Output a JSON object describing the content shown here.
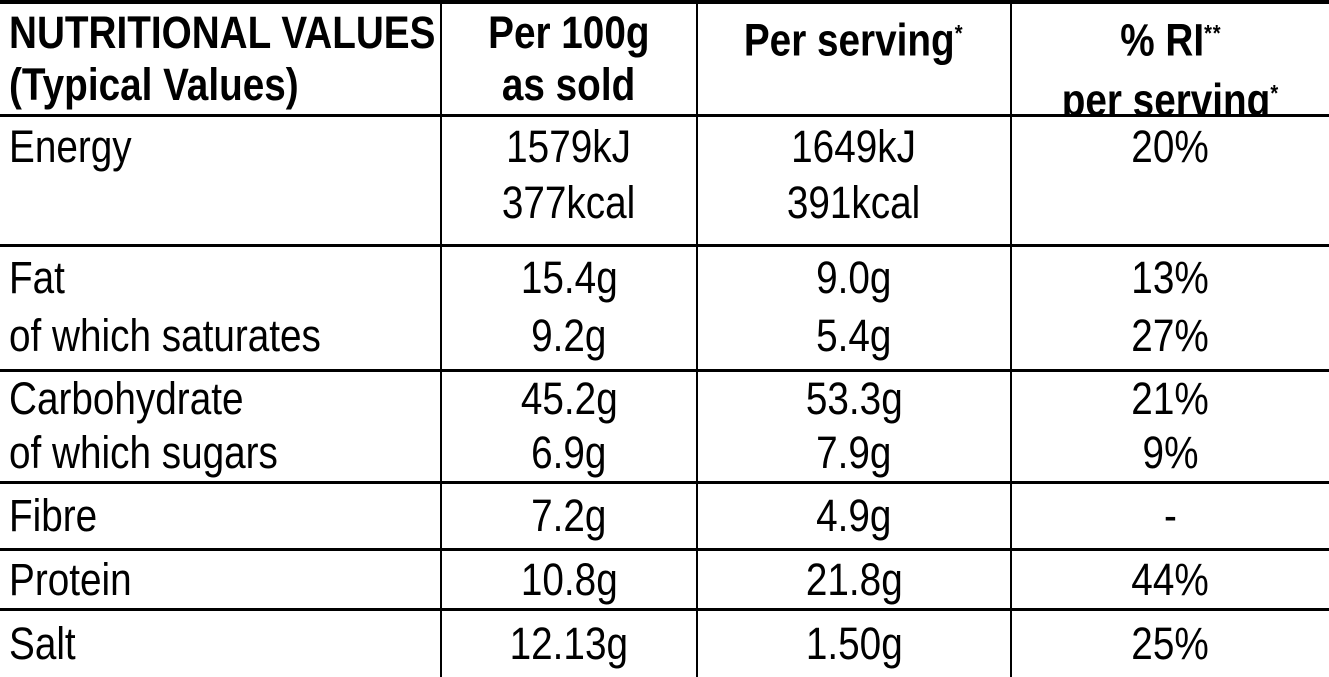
{
  "colors": {
    "background": "#ffffff",
    "text": "#000000",
    "lines": "#000000"
  },
  "header": {
    "title_line1": "NUTRITIONAL VALUES",
    "title_line2": "(Typical Values)",
    "per100_line1": "Per 100g",
    "per100_line2": "as sold",
    "serving_text": "Per serving",
    "serving_sup": "*",
    "ri_text": "% RI",
    "ri_sup": "**",
    "ri_line2_text": "per serving",
    "ri_line2_sup": "*"
  },
  "rows": {
    "energy": {
      "label": "Energy",
      "per100_kj": "1579kJ",
      "per100_kcal": "377kcal",
      "serving_kj": "1649kJ",
      "serving_kcal": "391kcal",
      "ri": "20%"
    },
    "fat": {
      "label": "Fat",
      "per100": "15.4g",
      "serving": "9.0g",
      "ri": "13%"
    },
    "saturates": {
      "label": "of which saturates",
      "per100": "9.2g",
      "serving": "5.4g",
      "ri": "27%"
    },
    "carbohydrate": {
      "label": "Carbohydrate",
      "per100": "45.2g",
      "serving": "53.3g",
      "ri": "21%"
    },
    "sugars": {
      "label": "of which sugars",
      "per100": "6.9g",
      "serving": "7.9g",
      "ri": "9%"
    },
    "fibre": {
      "label": "Fibre",
      "per100": "7.2g",
      "serving": "4.9g",
      "ri": "-"
    },
    "protein": {
      "label": "Protein",
      "per100": "10.8g",
      "serving": "21.8g",
      "ri": "44%"
    },
    "salt": {
      "label": "Salt",
      "per100": "12.13g",
      "serving": "1.50g",
      "ri": "25%"
    }
  },
  "chart_data": {
    "type": "table",
    "title": "NUTRITIONAL VALUES (Typical Values)",
    "columns": [
      "NUTRITIONAL VALUES (Typical Values)",
      "Per 100g as sold",
      "Per serving*",
      "% RI** per serving*"
    ],
    "rows": [
      [
        "Energy",
        "1579kJ / 377kcal",
        "1649kJ / 391kcal",
        "20%"
      ],
      [
        "Fat",
        "15.4g",
        "9.0g",
        "13%"
      ],
      [
        "of which saturates",
        "9.2g",
        "5.4g",
        "27%"
      ],
      [
        "Carbohydrate",
        "45.2g",
        "53.3g",
        "21%"
      ],
      [
        "of which sugars",
        "6.9g",
        "7.9g",
        "9%"
      ],
      [
        "Fibre",
        "7.2g",
        "4.9g",
        "-"
      ],
      [
        "Protein",
        "10.8g",
        "21.8g",
        "44%"
      ],
      [
        "Salt",
        "12.13g",
        "1.50g",
        "25%"
      ]
    ]
  }
}
